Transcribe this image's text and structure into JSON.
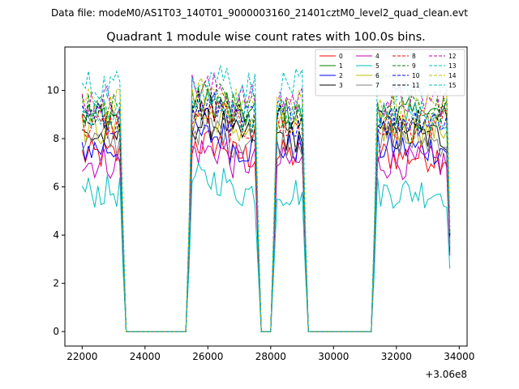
{
  "chart_data": {
    "type": "line",
    "suptitle": "Data file: modeM0/AS1T03_140T01_9000003160_21401cztM0_level2_quad_clean.evt",
    "title": "Quadrant 1 module wise count rates with 100.0s bins.",
    "xlabel": "",
    "ylabel": "",
    "x_offset_label": "+3.06e8",
    "xlim": [
      21450,
      34250
    ],
    "ylim": [
      -0.6,
      11.8
    ],
    "xticks": [
      22000,
      24000,
      26000,
      28000,
      30000,
      32000,
      34000
    ],
    "xtick_labels": [
      "22000",
      "24000",
      "26000",
      "28000",
      "30000",
      "32000",
      "34000"
    ],
    "yticks": [
      0,
      2,
      4,
      6,
      8,
      10
    ],
    "ytick_labels": [
      "0",
      "2",
      "4",
      "6",
      "8",
      "10"
    ],
    "legend_location": "top-right",
    "bin_width_s": 100,
    "segments": [
      [
        22000,
        23200
      ],
      [
        25500,
        27500
      ],
      [
        28200,
        29000
      ],
      [
        31400,
        33600
      ]
    ],
    "gaps": [
      [
        23400,
        25300
      ],
      [
        27700,
        28000
      ],
      [
        29200,
        31200
      ]
    ],
    "series": [
      {
        "name": "0",
        "color": "#ff0000",
        "style": "solid",
        "mean": 7.3
      },
      {
        "name": "1",
        "color": "#008000",
        "style": "solid",
        "mean": 9.0
      },
      {
        "name": "2",
        "color": "#0000ff",
        "style": "solid",
        "mean": 7.6
      },
      {
        "name": "3",
        "color": "#000000",
        "style": "solid",
        "mean": 8.1
      },
      {
        "name": "4",
        "color": "#bf00bf",
        "style": "solid",
        "mean": 7.0
      },
      {
        "name": "5",
        "color": "#00bfbf",
        "style": "solid",
        "mean": 5.8
      },
      {
        "name": "6",
        "color": "#bfbf00",
        "style": "solid",
        "mean": 8.4
      },
      {
        "name": "7",
        "color": "#808080",
        "style": "solid",
        "mean": 7.9
      },
      {
        "name": "8",
        "color": "#ff0000",
        "style": "dashed",
        "mean": 8.5
      },
      {
        "name": "9",
        "color": "#008000",
        "style": "dashed",
        "mean": 9.2
      },
      {
        "name": "10",
        "color": "#0000ff",
        "style": "dashed",
        "mean": 8.8
      },
      {
        "name": "11",
        "color": "#000000",
        "style": "dashed",
        "mean": 8.9
      },
      {
        "name": "12",
        "color": "#bf00bf",
        "style": "dashed",
        "mean": 9.6
      },
      {
        "name": "13",
        "color": "#00bfbf",
        "style": "dashed",
        "mean": 10.2
      },
      {
        "name": "14",
        "color": "#bfbf00",
        "style": "dashed",
        "mean": 9.4
      },
      {
        "name": "15",
        "color": "#00bfbf",
        "style": "dashed",
        "mean": 9.0
      }
    ]
  }
}
